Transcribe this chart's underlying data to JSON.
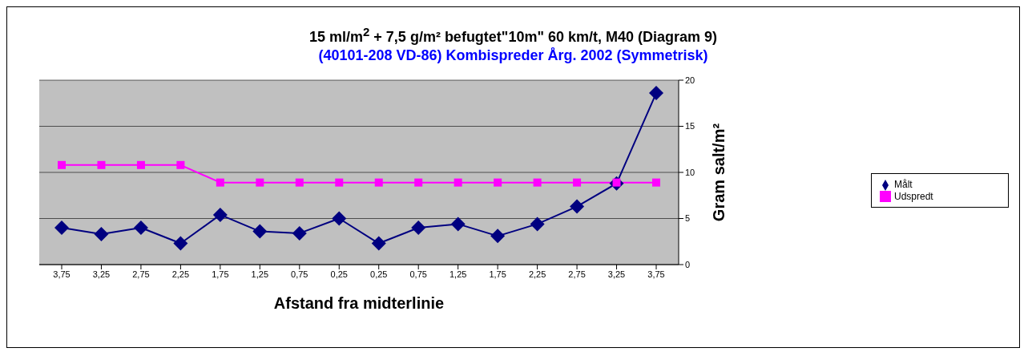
{
  "chart_data": {
    "type": "line",
    "title": "15 ml/m$^{2}$ + 7,5 g/m² befugtet\"10m\" 60 km/t, M40 (Diagram 9)",
    "subtitle": "(40101-208 VD-86) Kombispreder Årg. 2002 (Symmetrisk)",
    "xlabel": "Afstand fra midterlinie",
    "ylabel": "Gram salt/m²",
    "categories": [
      "3,75",
      "3,25",
      "2,75",
      "2,25",
      "1,75",
      "1,25",
      "0,75",
      "0,25",
      "0,25",
      "0,75",
      "1,25",
      "1,75",
      "2,25",
      "2,75",
      "3,25",
      "3,75"
    ],
    "series": [
      {
        "name": "Målt",
        "color": "#000080",
        "marker": "diamond",
        "values": [
          4.0,
          3.3,
          4.0,
          2.3,
          5.4,
          3.6,
          3.4,
          5.0,
          2.3,
          4.0,
          4.4,
          3.1,
          4.4,
          6.3,
          8.8,
          18.6
        ]
      },
      {
        "name": "Udspredt",
        "color": "#ff00ff",
        "marker": "square",
        "values": [
          10.8,
          10.8,
          10.8,
          10.8,
          8.9,
          8.9,
          8.9,
          8.9,
          8.9,
          8.9,
          8.9,
          8.9,
          8.9,
          8.9,
          8.9,
          8.9
        ]
      }
    ],
    "ylim": [
      0,
      20
    ],
    "yticks": [
      0,
      5,
      10,
      15,
      20
    ],
    "grid": "y",
    "legend": "right",
    "line_style": "solid"
  }
}
